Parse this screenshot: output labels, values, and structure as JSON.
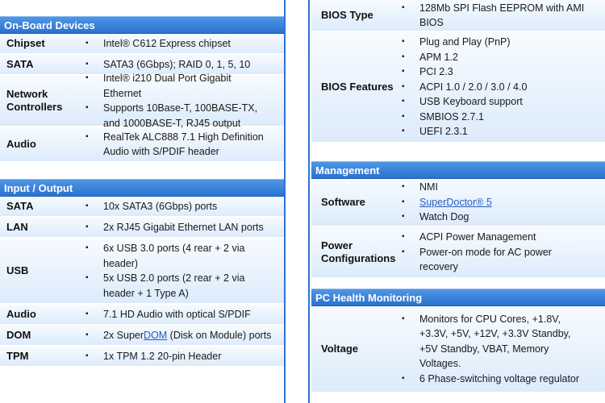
{
  "left": {
    "onboard": {
      "title": "On-Board Devices",
      "chipset": {
        "label": "Chipset",
        "items": [
          "Intel® C612 Express chipset"
        ]
      },
      "sata": {
        "label": "SATA",
        "items": [
          "SATA3 (6Gbps); RAID 0, 1, 5, 10"
        ]
      },
      "network": {
        "label_line1": "Network",
        "label_line2": "Controllers",
        "items": [
          "Intel® i210 Dual Port Gigabit Ethernet",
          "Supports 10Base-T, 100BASE-TX, and 1000BASE-T, RJ45 output"
        ]
      },
      "audio": {
        "label": "Audio",
        "items": [
          "RealTek ALC888 7.1 High Definition Audio with S/PDIF header"
        ]
      }
    },
    "io": {
      "title": "Input / Output",
      "sata": {
        "label": "SATA",
        "items": [
          "10x SATA3 (6Gbps) ports"
        ]
      },
      "lan": {
        "label": "LAN",
        "items": [
          "2x RJ45 Gigabit Ethernet LAN ports"
        ]
      },
      "usb": {
        "label": "USB",
        "items": [
          "6x USB 3.0 ports (4 rear + 2 via header)",
          "5x USB 2.0 ports (2 rear + 2 via header + 1 Type A)"
        ]
      },
      "audio": {
        "label": "Audio",
        "items": [
          "7.1 HD Audio with optical S/PDIF"
        ]
      },
      "dom": {
        "label": "DOM",
        "item_pre": "2x Super",
        "item_link": "DOM",
        "item_post": " (Disk on Module) ports"
      },
      "tpm": {
        "label": "TPM",
        "items": [
          "1x TPM 1.2 20-pin Header"
        ]
      }
    }
  },
  "right": {
    "bios_type": {
      "label": "BIOS Type",
      "items": [
        "128Mb SPI Flash EEPROM with AMI BIOS"
      ]
    },
    "bios_features": {
      "label": "BIOS Features",
      "items": [
        "Plug and Play (PnP)",
        "APM 1.2",
        "PCI 2.3",
        "ACPI 1.0 / 2.0 / 3.0 / 4.0",
        "USB Keyboard support",
        "SMBIOS 2.7.1",
        "UEFI 2.3.1"
      ]
    },
    "management": {
      "title": "Management",
      "software": {
        "label": "Software",
        "item1": "NMI",
        "item2_link": "SuperDoctor® 5",
        "item3": "Watch Dog"
      },
      "power": {
        "label_line1": "Power",
        "label_line2": "Configurations",
        "items": [
          "ACPI Power Management",
          "Power-on mode for AC power recovery"
        ]
      }
    },
    "health": {
      "title": "PC Health Monitoring",
      "voltage": {
        "label": "Voltage",
        "items": [
          "Monitors for CPU Cores, +1.8V, +3.3V, +5V, +12V, +3.3V Standby, +5V Standby, VBAT, Memory Voltages.",
          "6 Phase-switching voltage regulator"
        ]
      }
    }
  },
  "colors": {
    "header_top": "#4f96e6",
    "header_bottom": "#2a72cf",
    "row_top": "#f7fbff",
    "row_bottom": "#dcebfb",
    "divider": "#2f74d0"
  }
}
